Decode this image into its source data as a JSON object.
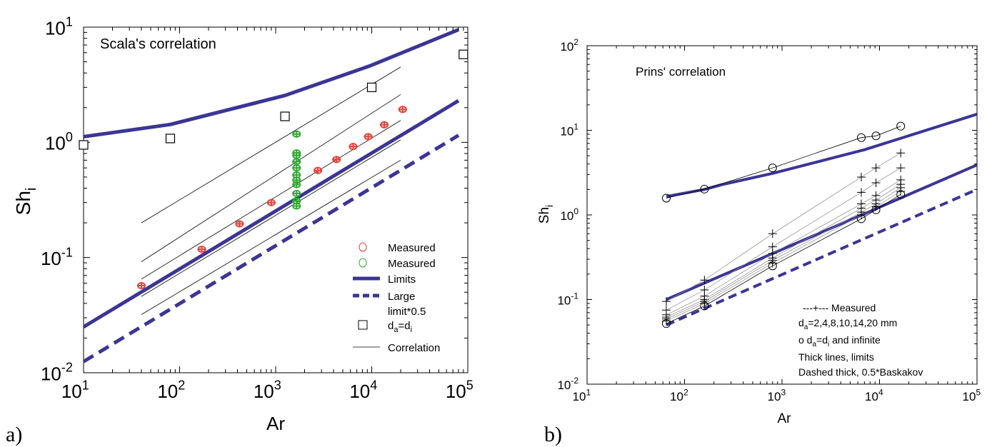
{
  "chart_data": [
    {
      "type": "scatter",
      "panel_label": "a)",
      "annotation": "Scala's correlation",
      "xlabel": "Ar",
      "ylabel_main": "Sh",
      "ylabel_sub": "i",
      "xscale": "log",
      "yscale": "log",
      "xlim": [
        10,
        100000
      ],
      "ylim": [
        0.01,
        10
      ],
      "x_ticks": [
        {
          "base": "10",
          "exp": "1"
        },
        {
          "base": "10",
          "exp": "2"
        },
        {
          "base": "10",
          "exp": "3"
        },
        {
          "base": "10",
          "exp": "4"
        },
        {
          "base": "10",
          "exp": "5"
        }
      ],
      "y_ticks": [
        {
          "base": "10",
          "exp": "-2"
        },
        {
          "base": "10",
          "exp": "-1"
        },
        {
          "base": "10",
          "exp": "0"
        },
        {
          "base": "10",
          "exp": "1"
        }
      ],
      "legend_placement": "bottom-right",
      "legend": [
        {
          "label": "Measured",
          "symbol": "circle",
          "color": "#e8403a"
        },
        {
          "label": "Measured",
          "symbol": "circle",
          "color": "#33aa33"
        },
        {
          "label": "Limits",
          "symbol": "thick-line",
          "color": "#3b3596"
        },
        {
          "label": "Large",
          "label2": "limit*0.5",
          "symbol": "dashed-line",
          "color": "#3b3596"
        },
        {
          "label": "d",
          "sub": "a",
          "label_rest": "=d",
          "sub2": "i",
          "symbol": "square",
          "color": "#000000"
        },
        {
          "label": "Correlation",
          "symbol": "thin-line",
          "color": "#000000"
        }
      ],
      "series": [
        {
          "kind": "limit_upper",
          "color": "#3b3596",
          "x": [
            10,
            80,
            1250,
            9500,
            80000
          ],
          "y": [
            1.12,
            1.43,
            2.55,
            4.6,
            9.5
          ]
        },
        {
          "kind": "limit_lower",
          "color": "#3b3596",
          "x": [
            10,
            80000
          ],
          "y": [
            0.025,
            2.3
          ]
        },
        {
          "kind": "large_limit_half",
          "color": "#3b3596",
          "x": [
            10,
            80000
          ],
          "y": [
            0.0125,
            1.15
          ]
        },
        {
          "kind": "correlation",
          "color": "#000000",
          "x": [
            40,
            20000
          ],
          "y": [
            0.2,
            4.5
          ]
        },
        {
          "kind": "correlation",
          "color": "#000000",
          "x": [
            40,
            20000
          ],
          "y": [
            0.092,
            2.6
          ]
        },
        {
          "kind": "correlation",
          "color": "#000000",
          "x": [
            40,
            20000
          ],
          "y": [
            0.065,
            1.55
          ]
        },
        {
          "kind": "correlation",
          "color": "#000000",
          "x": [
            40,
            20000
          ],
          "y": [
            0.046,
            1.05
          ]
        },
        {
          "kind": "correlation",
          "color": "#000000",
          "x": [
            40,
            20000
          ],
          "y": [
            0.032,
            0.7
          ]
        },
        {
          "kind": "measured_red",
          "color": "#e8403a",
          "x": [
            40,
            170,
            420,
            900,
            2750,
            4300,
            6400,
            9200,
            13500,
            21000
          ],
          "y": [
            0.057,
            0.118,
            0.196,
            0.3,
            0.57,
            0.71,
            0.92,
            1.12,
            1.42,
            1.93
          ]
        },
        {
          "kind": "measured_green",
          "color": "#33aa33",
          "x": [
            1650,
            1650,
            1650,
            1650,
            1650,
            1650,
            1650,
            1650,
            1650,
            1650,
            1650
          ],
          "y": [
            0.28,
            0.31,
            0.36,
            0.43,
            0.47,
            0.52,
            0.6,
            0.68,
            0.77,
            0.81,
            1.18
          ]
        },
        {
          "kind": "da_eq_di",
          "color": "#000000",
          "x": [
            10,
            80,
            1250,
            10000,
            90000
          ],
          "y": [
            0.95,
            1.08,
            1.68,
            3.0,
            5.8
          ]
        }
      ]
    },
    {
      "type": "line",
      "panel_label": "b)",
      "annotation": "Prins' correlation",
      "xlabel": "Ar",
      "ylabel_main": "Sh",
      "ylabel_sub": "i",
      "xscale": "log",
      "yscale": "log",
      "xlim": [
        10,
        100000
      ],
      "ylim": [
        0.01,
        100
      ],
      "x_ticks": [
        {
          "base": "10",
          "exp": "1"
        },
        {
          "base": "10",
          "exp": "2"
        },
        {
          "base": "10",
          "exp": "3"
        },
        {
          "base": "10",
          "exp": "4"
        },
        {
          "base": "10",
          "exp": "5"
        }
      ],
      "y_ticks": [
        {
          "base": "10",
          "exp": "-2"
        },
        {
          "base": "10",
          "exp": "-1"
        },
        {
          "base": "10",
          "exp": "0"
        },
        {
          "base": "10",
          "exp": "1"
        },
        {
          "base": "10",
          "exp": "2"
        }
      ],
      "legend_placement": "bottom-right",
      "legend_text": [
        {
          "t": "---+--- Measured"
        },
        {
          "t": "d",
          "sub": "a",
          "rest": "=2,4,8,10,14,20 mm"
        },
        {
          "t": "o  d",
          "sub": "a",
          "rest": "=d",
          "sub2": "i",
          "rest2": " and infinite"
        },
        {
          "t": "Thick lines, limits"
        },
        {
          "t": "Dashed thick, 0.5*Baskakov"
        }
      ],
      "series": [
        {
          "kind": "limit_upper",
          "color": "#3b3596",
          "x": [
            65,
            160,
            250,
            800,
            7000,
            100000
          ],
          "y": [
            1.65,
            2.0,
            2.3,
            3.1,
            5.9,
            15.5
          ]
        },
        {
          "kind": "limit_lower",
          "color": "#3b3596",
          "x": [
            65,
            100000
          ],
          "y": [
            0.1,
            3.9
          ]
        },
        {
          "kind": "baskakov_half",
          "color": "#3b3596",
          "x": [
            65,
            100000
          ],
          "y": [
            0.05,
            2.0
          ]
        },
        {
          "kind": "circles_upper",
          "color": "#000000",
          "x": [
            65,
            160,
            800,
            6500,
            9200,
            16500
          ],
          "y": [
            1.58,
            2.02,
            3.6,
            8.2,
            8.6,
            11.2
          ]
        },
        {
          "kind": "circles_lower",
          "color": "#000000",
          "x": [
            65,
            160,
            800,
            6500,
            9200,
            16500
          ],
          "y": [
            0.052,
            0.084,
            0.25,
            0.9,
            1.15,
            1.75
          ]
        },
        {
          "kind": "measured",
          "color": "#000000",
          "x": [
            65,
            160,
            800,
            6500,
            9200,
            16500
          ],
          "y": [
            0.095,
            0.17,
            0.6,
            2.8,
            3.6,
            5.4
          ]
        },
        {
          "kind": "measured",
          "color": "#000000",
          "x": [
            65,
            160,
            800,
            6500,
            9200,
            16500
          ],
          "y": [
            0.075,
            0.13,
            0.42,
            1.85,
            2.4,
            3.6
          ]
        },
        {
          "kind": "measured",
          "color": "#000000",
          "x": [
            65,
            160,
            800,
            6500,
            9200,
            16500
          ],
          "y": [
            0.066,
            0.11,
            0.35,
            1.35,
            1.7,
            2.6
          ]
        },
        {
          "kind": "measured",
          "color": "#000000",
          "x": [
            65,
            160,
            800,
            6500,
            9200,
            16500
          ],
          "y": [
            0.062,
            0.1,
            0.31,
            1.2,
            1.5,
            2.3
          ]
        },
        {
          "kind": "measured",
          "color": "#000000",
          "x": [
            65,
            160,
            800,
            6500,
            9200,
            16500
          ],
          "y": [
            0.059,
            0.095,
            0.29,
            1.08,
            1.35,
            2.1
          ]
        },
        {
          "kind": "measured",
          "color": "#000000",
          "x": [
            65,
            160,
            800,
            6500,
            9200,
            16500
          ],
          "y": [
            0.056,
            0.09,
            0.27,
            1.0,
            1.25,
            1.9
          ]
        }
      ]
    }
  ]
}
